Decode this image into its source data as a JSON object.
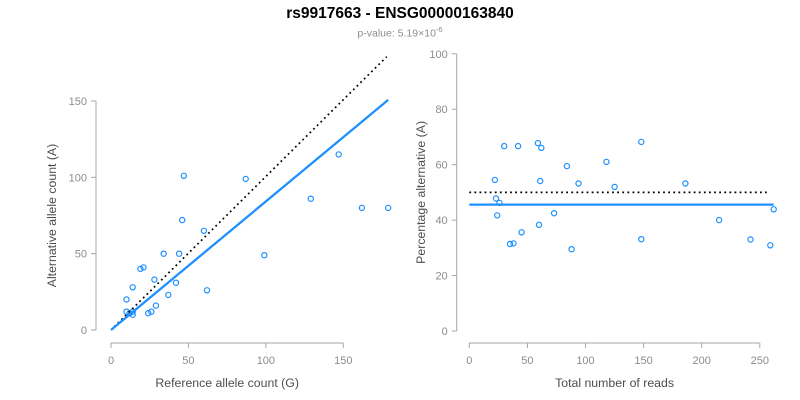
{
  "header": {
    "title": "rs9917663 - ENSG00000163840",
    "subtitle_prefix": "p-value: 5.19×10",
    "subtitle_exponent": "-6"
  },
  "colors": {
    "accent_blue": "#1E90FF",
    "dotted_black": "#000000",
    "axis": "#A6A6A6",
    "tick_label": "#8C8C8C",
    "axis_title": "#4D4D4D"
  },
  "chart_data": [
    {
      "type": "scatter",
      "name": "allele-counts-panel",
      "xlabel": "Reference allele count (G)",
      "ylabel": "Alternative allele count (A)",
      "xticks": [
        0,
        50,
        100,
        150
      ],
      "yticks": [
        0,
        50,
        100,
        150
      ],
      "xlim": [
        0,
        183
      ],
      "ylim": [
        0,
        183
      ],
      "grid": false,
      "legend": "none",
      "points": [
        [
          10,
          20
        ],
        [
          10,
          12
        ],
        [
          12,
          11
        ],
        [
          14,
          12
        ],
        [
          14,
          10
        ],
        [
          14,
          28
        ],
        [
          19,
          40
        ],
        [
          21,
          41
        ],
        [
          24,
          11
        ],
        [
          26,
          12
        ],
        [
          28,
          33
        ],
        [
          29,
          16
        ],
        [
          34,
          50
        ],
        [
          37,
          23
        ],
        [
          42,
          31
        ],
        [
          44,
          50
        ],
        [
          46,
          72
        ],
        [
          47,
          101
        ],
        [
          60,
          65
        ],
        [
          62,
          26
        ],
        [
          87,
          99
        ],
        [
          99,
          49
        ],
        [
          129,
          86
        ],
        [
          147,
          115
        ],
        [
          162,
          80
        ],
        [
          179,
          80
        ]
      ],
      "lines": [
        {
          "name": "identity-line",
          "style": "dotted",
          "color": "#000000",
          "width": 1.7,
          "x1": 2,
          "y1": 2,
          "x2": 178,
          "y2": 179
        },
        {
          "name": "fitted-ratio-line",
          "style": "solid",
          "color": "#1E90FF",
          "width": 2.3,
          "x1": 0,
          "y1": 0,
          "x2": 179,
          "y2": 150.7
        }
      ]
    },
    {
      "type": "scatter",
      "name": "percentage-alternative-panel",
      "xlabel": "Total number of reads",
      "ylabel": "Percentage alternative (A)",
      "xticks": [
        0,
        50,
        100,
        150,
        200,
        250
      ],
      "yticks": [
        0,
        20,
        40,
        60,
        80,
        100
      ],
      "xlim": [
        0,
        265
      ],
      "ylim": [
        0,
        100
      ],
      "grid": false,
      "legend": "none",
      "points": [
        [
          30,
          66.7
        ],
        [
          22,
          54.5
        ],
        [
          23,
          47.8
        ],
        [
          26,
          46.2
        ],
        [
          24,
          41.7
        ],
        [
          42,
          66.7
        ],
        [
          59,
          67.8
        ],
        [
          62,
          66.1
        ],
        [
          35,
          31.4
        ],
        [
          38,
          31.6
        ],
        [
          61,
          54.1
        ],
        [
          45,
          35.6
        ],
        [
          84,
          59.5
        ],
        [
          60,
          38.3
        ],
        [
          73,
          42.5
        ],
        [
          94,
          53.2
        ],
        [
          118,
          61.0
        ],
        [
          148,
          68.2
        ],
        [
          125,
          52.0
        ],
        [
          88,
          29.5
        ],
        [
          186,
          53.2
        ],
        [
          148,
          33.1
        ],
        [
          215,
          40.0
        ],
        [
          262,
          43.9
        ],
        [
          242,
          33.0
        ],
        [
          259,
          30.9
        ]
      ],
      "lines": [
        {
          "name": "expected-50pct-line",
          "style": "dotted",
          "color": "#000000",
          "width": 1.7,
          "x1": 0,
          "y1": 50,
          "x2": 256,
          "y2": 50
        },
        {
          "name": "observed-ratio-line",
          "style": "solid",
          "color": "#1E90FF",
          "width": 2.3,
          "x1": 0,
          "y1": 45.6,
          "x2": 262,
          "y2": 45.6
        }
      ]
    }
  ]
}
